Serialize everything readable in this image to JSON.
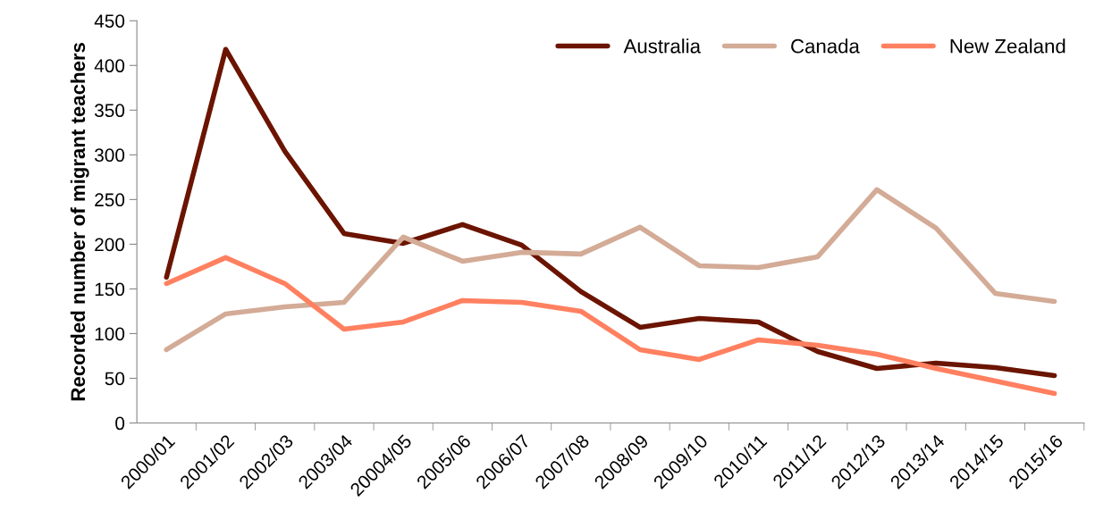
{
  "chart_data": {
    "type": "line",
    "ylabel": "Recorded number of migrant teachers",
    "categories": [
      "2000/01",
      "2001/02",
      "2002/03",
      "2003/04",
      "20004/05",
      "2005/06",
      "2006/07",
      "2007/08",
      "2008/09",
      "2009/10",
      "2010/11",
      "2011/12",
      "2012/13",
      "2013/14",
      "2014/15",
      "2015/16"
    ],
    "series": [
      {
        "name": "Australia",
        "color": "#6b1400",
        "values": [
          163,
          418,
          304,
          212,
          201,
          222,
          199,
          147,
          107,
          117,
          113,
          80,
          61,
          67,
          62,
          53
        ]
      },
      {
        "name": "Canada",
        "color": "#d3ab96",
        "values": [
          82,
          122,
          130,
          135,
          208,
          181,
          191,
          189,
          219,
          176,
          174,
          186,
          261,
          218,
          145,
          136
        ]
      },
      {
        "name": "New Zealand",
        "color": "#ff8060",
        "values": [
          156,
          185,
          156,
          105,
          113,
          137,
          135,
          125,
          82,
          71,
          93,
          87,
          77,
          61,
          47,
          33
        ]
      }
    ],
    "ylim": [
      0,
      450
    ],
    "yticks": [
      0,
      50,
      100,
      150,
      200,
      250,
      300,
      350,
      400,
      450
    ],
    "grid": false,
    "legend": "top right",
    "marker": "none",
    "line_style": "solid"
  }
}
